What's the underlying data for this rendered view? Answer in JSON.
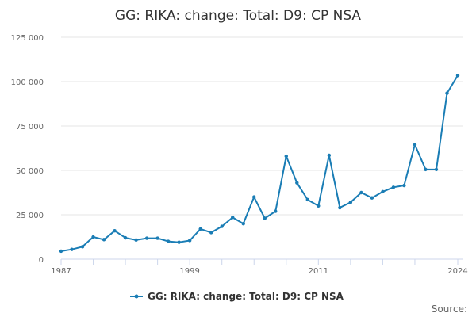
{
  "chart_data": {
    "type": "line",
    "title": "GG: RIKA: change: Total: D9: CP NSA",
    "xlabel": "",
    "ylabel": "",
    "x_ticks": [
      1987,
      1999,
      2011,
      2024
    ],
    "y_ticks": [
      0,
      25000,
      50000,
      75000,
      100000,
      125000
    ],
    "y_tick_labels": [
      "0",
      "25 000",
      "50 000",
      "75 000",
      "100 000",
      "125 000"
    ],
    "xlim": [
      1987,
      2024
    ],
    "ylim": [
      0,
      125000
    ],
    "grid": true,
    "legend_position": "bottom",
    "series": [
      {
        "name": "GG: RIKA: change: Total: D9: CP NSA",
        "color": "#1a7db5",
        "x": [
          1987,
          1988,
          1989,
          1990,
          1991,
          1992,
          1993,
          1994,
          1995,
          1996,
          1997,
          1998,
          1999,
          2000,
          2001,
          2002,
          2003,
          2004,
          2005,
          2006,
          2007,
          2008,
          2009,
          2010,
          2011,
          2012,
          2013,
          2014,
          2015,
          2016,
          2017,
          2018,
          2019,
          2020,
          2021,
          2022,
          2023,
          2024
        ],
        "values": [
          4500,
          5500,
          7000,
          12500,
          11000,
          16000,
          12000,
          10800,
          11800,
          11800,
          10000,
          9500,
          10500,
          17000,
          15000,
          18500,
          23500,
          20000,
          35000,
          23000,
          27000,
          58000,
          43000,
          33500,
          30000,
          58500,
          29000,
          32000,
          37500,
          34500,
          38000,
          40500,
          41500,
          64500,
          50500,
          50500,
          93500,
          103500
        ]
      }
    ],
    "source_label": "Source:"
  }
}
